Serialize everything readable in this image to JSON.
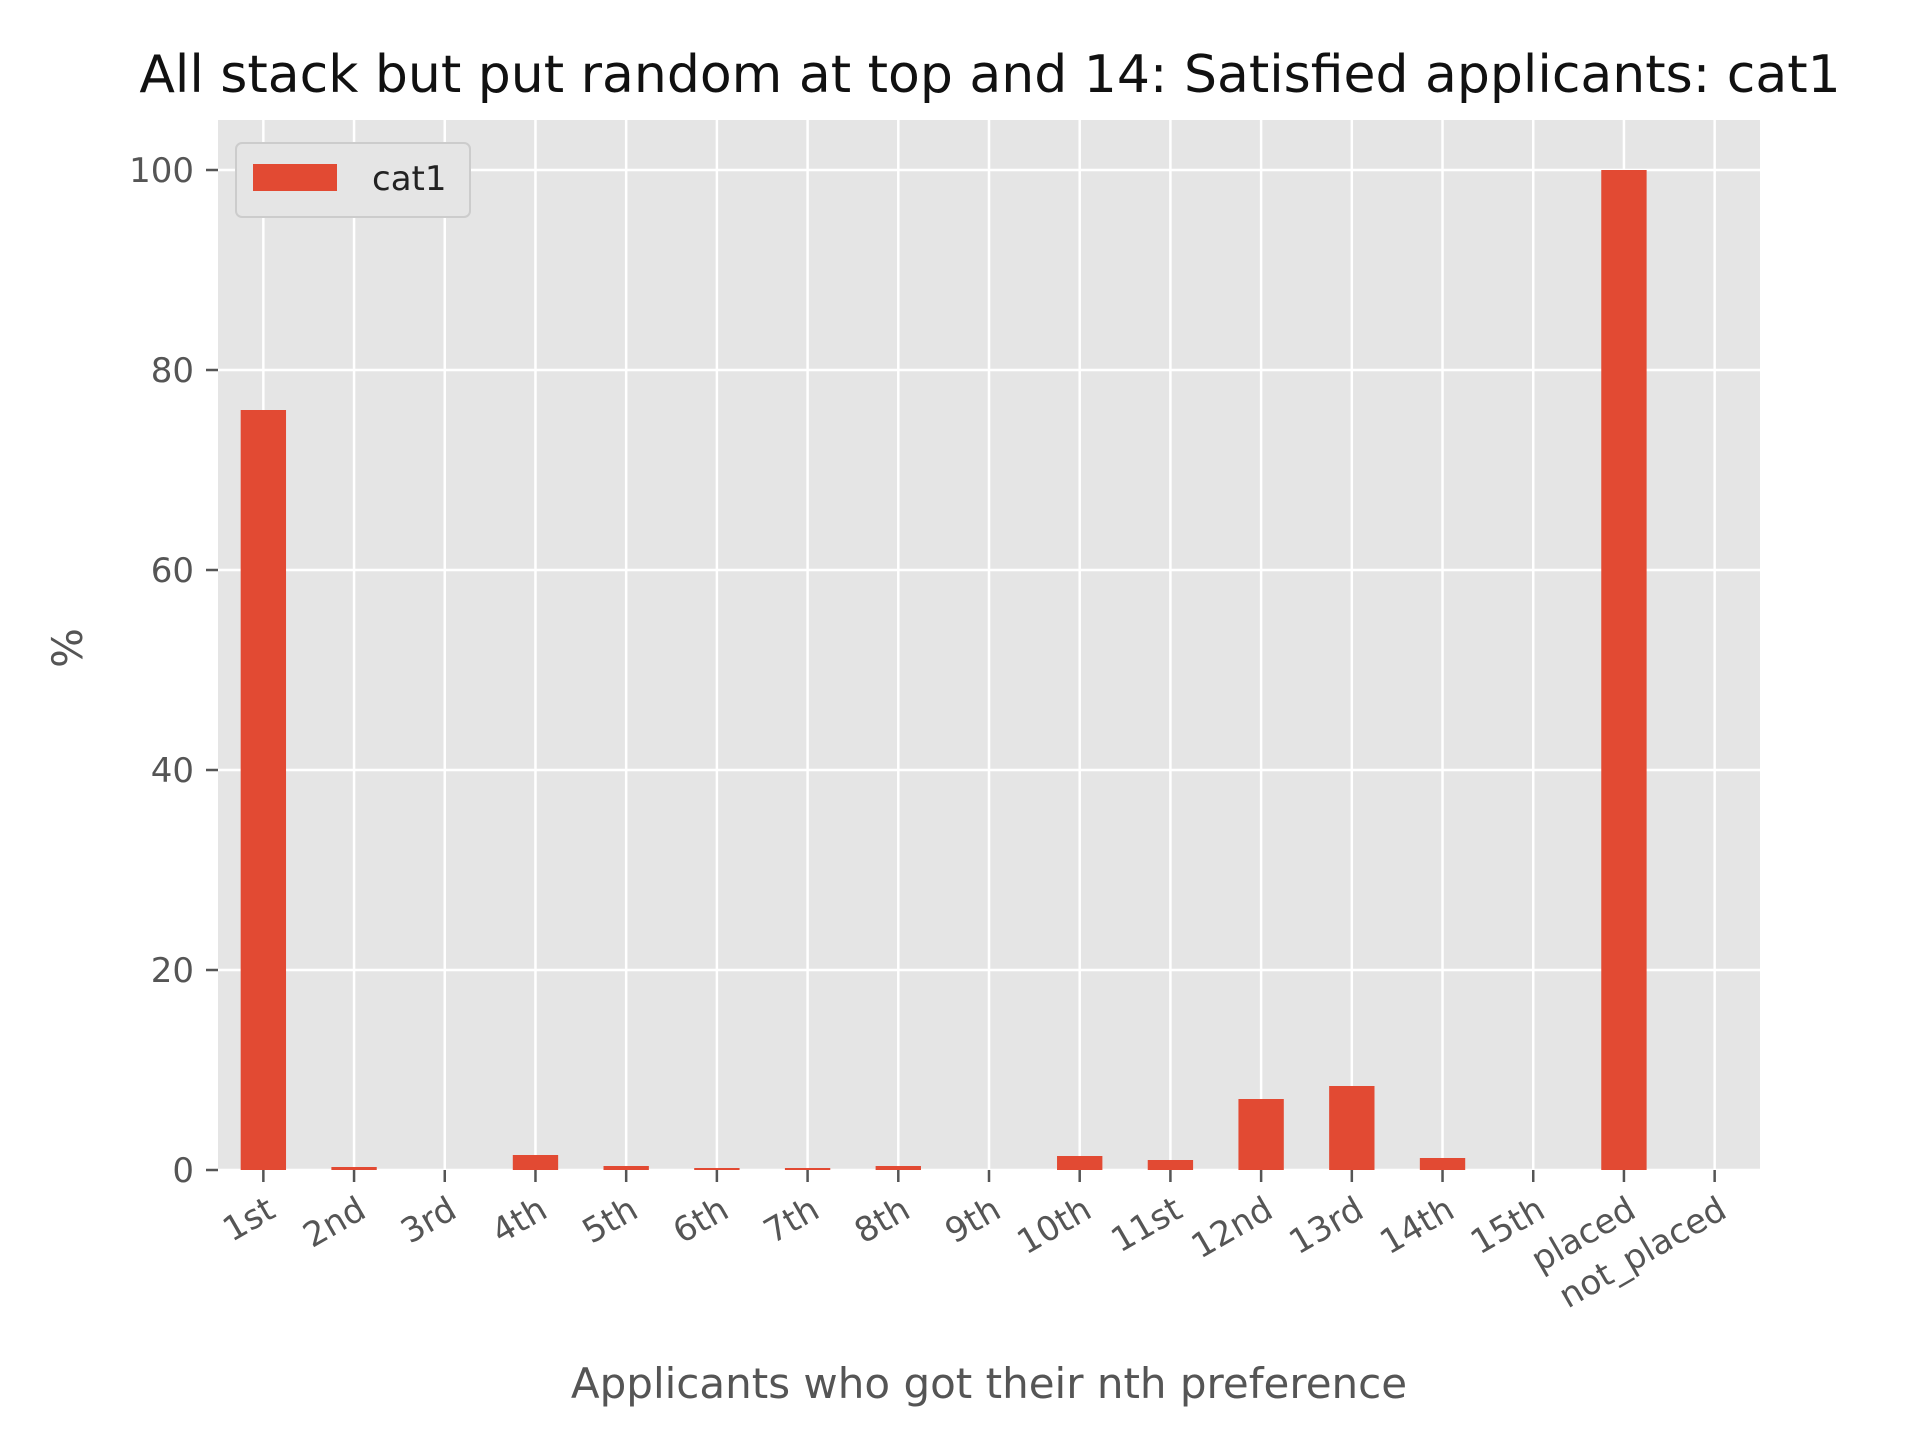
{
  "chart_data": {
    "type": "bar",
    "title": "All stack but put random at top and 14: Satisfied applicants: cat1",
    "xlabel": "Applicants who got their nth preference",
    "ylabel": "%",
    "categories": [
      "1st",
      "2nd",
      "3rd",
      "4th",
      "5th",
      "6th",
      "7th",
      "8th",
      "9th",
      "10th",
      "11st",
      "12nd",
      "13rd",
      "14th",
      "15th",
      "placed",
      "not_placed"
    ],
    "series": [
      {
        "name": "cat1",
        "color": "#E24A33",
        "values": [
          76,
          0.3,
          0,
          1.5,
          0.4,
          0.2,
          0.2,
          0.4,
          0,
          1.4,
          1.0,
          7.1,
          8.4,
          1.2,
          0,
          100,
          0
        ]
      }
    ],
    "ylim": [
      0,
      105
    ],
    "yticks": [
      0,
      20,
      40,
      60,
      80,
      100
    ],
    "grid": true,
    "legend_position": "top-left",
    "background_color": "#E5E5E5",
    "grid_color": "#FFFFFF"
  }
}
